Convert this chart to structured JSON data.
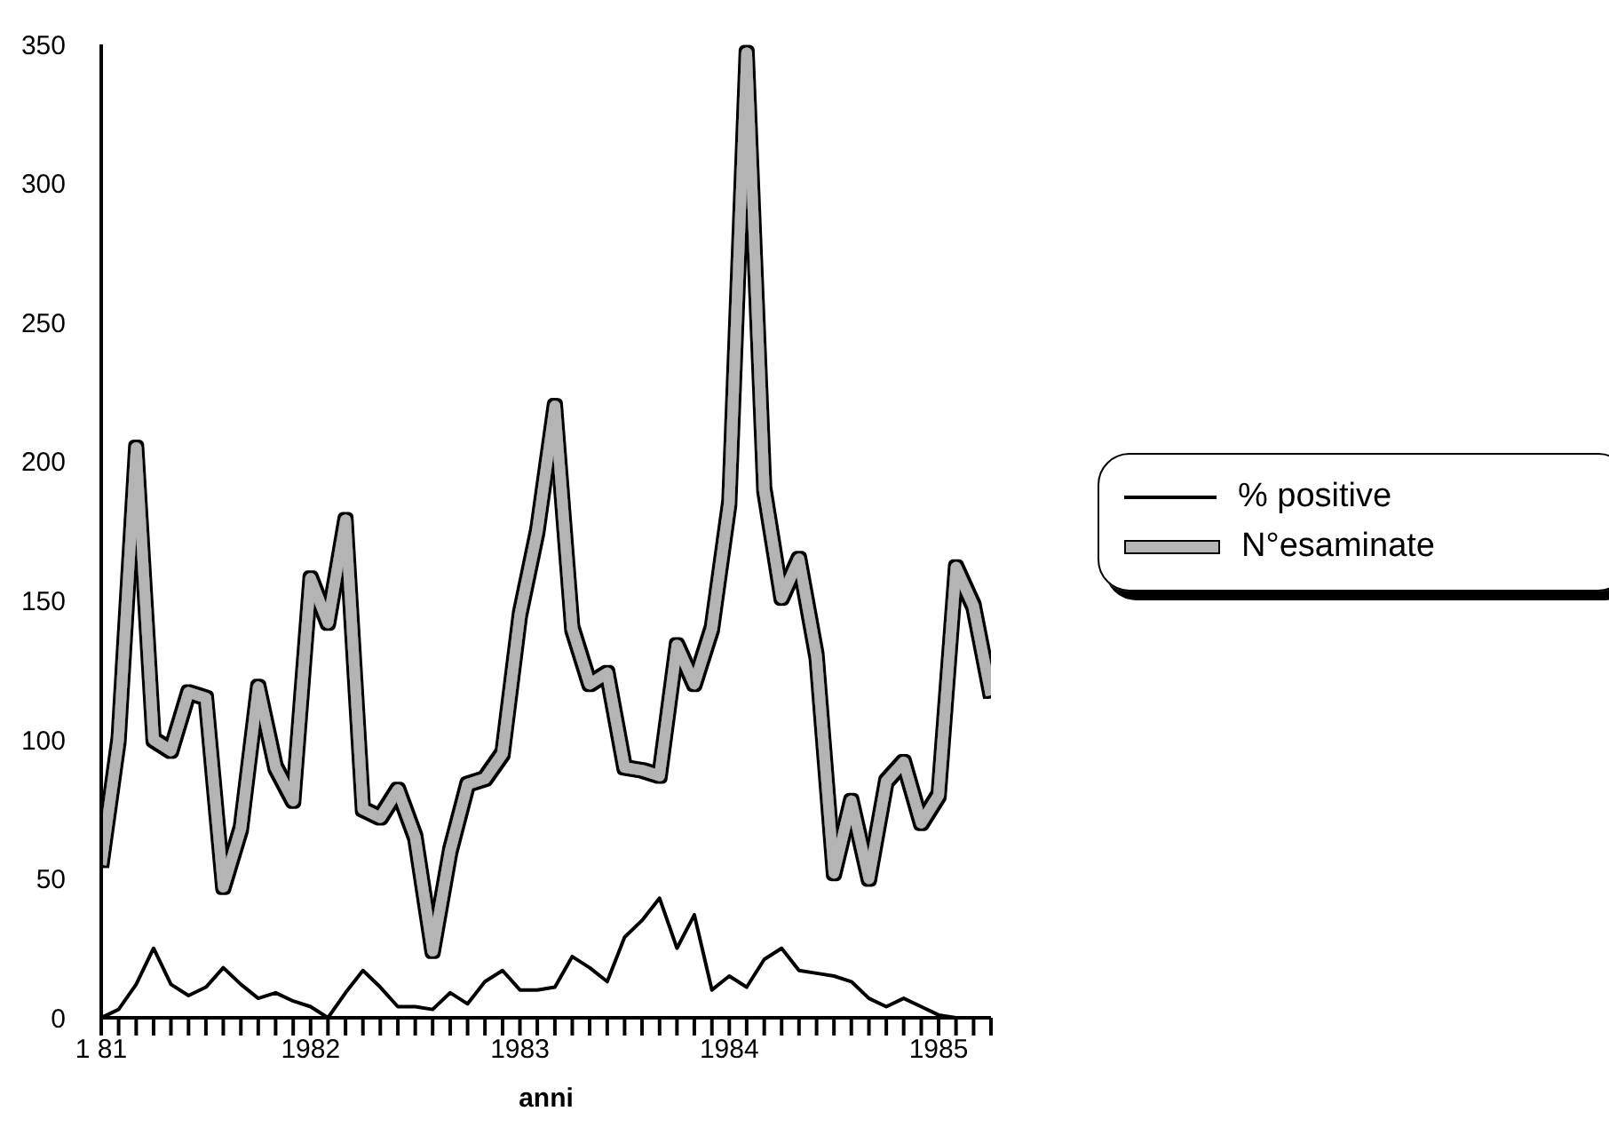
{
  "chart_data": {
    "type": "line",
    "xlabel": "anni",
    "x": [
      1981,
      1981.083,
      1981.167,
      1981.25,
      1981.333,
      1981.417,
      1981.5,
      1981.583,
      1981.667,
      1981.75,
      1981.833,
      1981.917,
      1982,
      1982.083,
      1982.167,
      1982.25,
      1982.333,
      1982.417,
      1982.5,
      1982.583,
      1982.667,
      1982.75,
      1982.833,
      1982.917,
      1983,
      1983.083,
      1983.167,
      1983.25,
      1983.333,
      1983.417,
      1983.5,
      1983.583,
      1983.667,
      1983.75,
      1983.833,
      1983.917,
      1984,
      1984.083,
      1984.167,
      1984.25,
      1984.333,
      1984.417,
      1984.5,
      1984.583,
      1984.667,
      1984.75,
      1984.833,
      1984.917,
      1985,
      1985.083,
      1985.167,
      1985.25
    ],
    "series": [
      {
        "name": "% positive",
        "color": "#000000",
        "values": [
          0,
          3,
          12,
          25,
          12,
          8,
          11,
          18,
          12,
          7,
          9,
          6,
          4,
          0,
          9,
          17,
          11,
          4,
          4,
          3,
          9,
          5,
          13,
          17,
          10,
          10,
          11,
          22,
          18,
          13,
          29,
          35,
          43,
          25,
          37,
          10,
          15,
          11,
          21,
          25,
          17,
          16,
          15,
          13,
          7,
          4,
          7,
          4,
          1,
          0,
          0,
          0
        ]
      },
      {
        "name": "N°esaminate",
        "color": "#b4b4b4",
        "values": [
          55,
          100,
          205,
          100,
          96,
          117,
          115,
          47,
          68,
          119,
          90,
          78,
          158,
          142,
          179,
          75,
          72,
          82,
          65,
          24,
          60,
          84,
          86,
          95,
          145,
          175,
          220,
          140,
          120,
          124,
          90,
          89,
          87,
          134,
          120,
          140,
          185,
          347,
          190,
          151,
          165,
          130,
          52,
          78,
          50,
          85,
          92,
          70,
          80,
          162,
          148,
          116
        ]
      }
    ],
    "xlim": [
      1981,
      1985.25
    ],
    "xticks": [
      {
        "value": 1981,
        "label": "1 81"
      },
      {
        "value": 1981.083,
        "label": null
      },
      {
        "value": 1981.167,
        "label": null
      },
      {
        "value": 1981.25,
        "label": null
      },
      {
        "value": 1981.333,
        "label": null
      },
      {
        "value": 1981.417,
        "label": null
      },
      {
        "value": 1981.5,
        "label": null
      },
      {
        "value": 1981.583,
        "label": null
      },
      {
        "value": 1981.667,
        "label": null
      },
      {
        "value": 1981.75,
        "label": null
      },
      {
        "value": 1981.833,
        "label": null
      },
      {
        "value": 1981.917,
        "label": null
      },
      1982,
      {
        "value": 1982.083,
        "label": null
      },
      {
        "value": 1982.167,
        "label": null
      },
      {
        "value": 1982.25,
        "label": null
      },
      {
        "value": 1982.333,
        "label": null
      },
      {
        "value": 1982.417,
        "label": null
      },
      {
        "value": 1982.5,
        "label": null
      },
      {
        "value": 1982.583,
        "label": null
      },
      {
        "value": 1982.667,
        "label": null
      },
      {
        "value": 1982.75,
        "label": null
      },
      {
        "value": 1982.833,
        "label": null
      },
      {
        "value": 1982.917,
        "label": null
      },
      1983,
      {
        "value": 1983.083,
        "label": null
      },
      {
        "value": 1983.167,
        "label": null
      },
      {
        "value": 1983.25,
        "label": null
      },
      {
        "value": 1983.333,
        "label": null
      },
      {
        "value": 1983.417,
        "label": null
      },
      {
        "value": 1983.5,
        "label": null
      },
      {
        "value": 1983.583,
        "label": null
      },
      {
        "value": 1983.667,
        "label": null
      },
      {
        "value": 1983.75,
        "label": null
      },
      {
        "value": 1983.833,
        "label": null
      },
      {
        "value": 1983.917,
        "label": null
      },
      1984,
      {
        "value": 1984.083,
        "label": null
      },
      {
        "value": 1984.167,
        "label": null
      },
      {
        "value": 1984.25,
        "label": null
      },
      {
        "value": 1984.333,
        "label": null
      },
      {
        "value": 1984.417,
        "label": null
      },
      {
        "value": 1984.5,
        "label": null
      },
      {
        "value": 1984.583,
        "label": null
      },
      {
        "value": 1984.667,
        "label": null
      },
      {
        "value": 1984.75,
        "label": null
      },
      {
        "value": 1984.833,
        "label": null
      },
      {
        "value": 1984.917,
        "label": null
      },
      1985,
      {
        "value": 1985.083,
        "label": null
      },
      {
        "value": 1985.167,
        "label": null
      },
      {
        "value": 1985.25,
        "label": null
      }
    ],
    "ylim": [
      0,
      350
    ],
    "yticks": [
      0,
      50,
      100,
      150,
      200,
      250,
      300,
      350
    ],
    "grid": false,
    "legend": "right",
    "marker": "none",
    "line_style": "solid"
  }
}
